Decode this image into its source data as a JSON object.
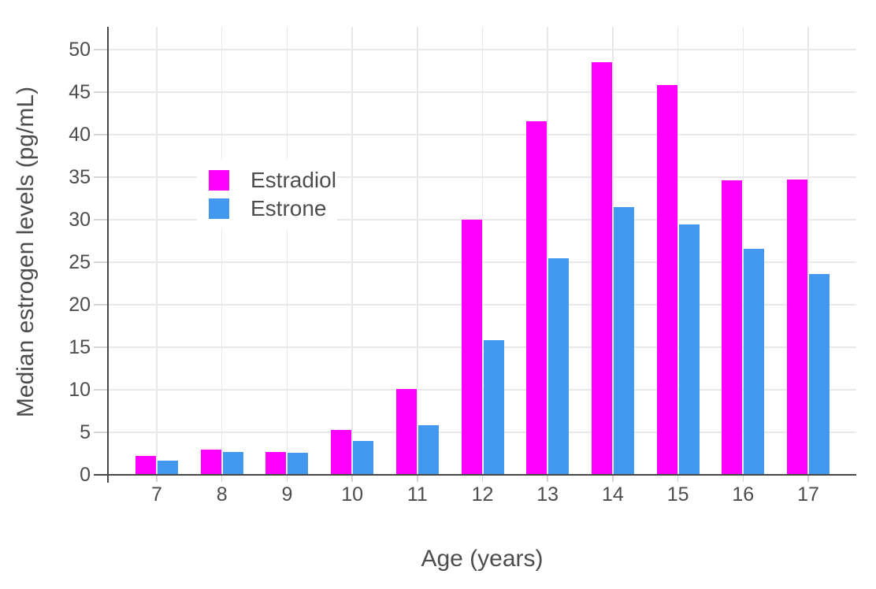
{
  "chart_data": {
    "type": "bar",
    "title": "",
    "xlabel": "Age (years)",
    "ylabel": "Median estrogen levels (pg/mL)",
    "categories": [
      7,
      8,
      9,
      10,
      11,
      12,
      13,
      14,
      15,
      16,
      17
    ],
    "xtick_labels": [
      "7",
      "8",
      "9",
      "10",
      "11",
      "12",
      "13",
      "14",
      "15",
      "16",
      "17"
    ],
    "ytick_labels": [
      "0",
      "5",
      "10",
      "15",
      "20",
      "25",
      "30",
      "35",
      "40",
      "45",
      "50"
    ],
    "ylim": [
      0,
      50
    ],
    "ytick_step": 5,
    "grid": true,
    "legend_position": "inside-upper-left",
    "series": [
      {
        "name": "Estradiol",
        "color": "#ff00ff",
        "values": [
          2.2,
          3.0,
          2.7,
          5.3,
          10.1,
          30.0,
          41.6,
          48.5,
          45.8,
          34.6,
          34.7
        ]
      },
      {
        "name": "Estrone",
        "color": "#4298ef",
        "values": [
          1.7,
          2.7,
          2.6,
          4.0,
          5.8,
          15.8,
          25.5,
          31.5,
          29.4,
          26.6,
          23.6
        ]
      }
    ]
  },
  "colors": {
    "estradiol": "#ff00ff",
    "estrone": "#4298ef",
    "axis_line": "#474747",
    "grid_line": "#e8e8e8",
    "tick": "#d4d4d4",
    "text": "#4d4d4d",
    "background": "#ffffff"
  }
}
